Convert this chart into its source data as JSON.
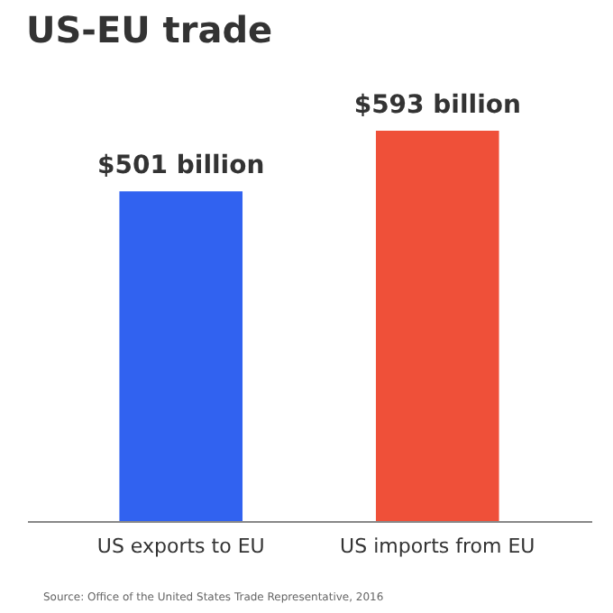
{
  "chart_data": {
    "type": "bar",
    "title": "US-EU trade",
    "categories": [
      "US exports to EU",
      "US imports from EU"
    ],
    "values": [
      501,
      593
    ],
    "colors": [
      "#3162f0",
      "#ef5039"
    ],
    "value_labels": [
      "$501 billion",
      "$593 billion"
    ],
    "tick_labels": "x",
    "annotations": [
      "Source: Office of the United States Trade Representative, 2016"
    ]
  }
}
